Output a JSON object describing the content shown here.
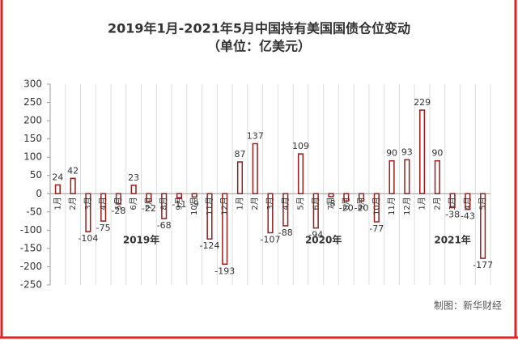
{
  "chart_data": {
    "type": "bar",
    "title": "2019年1月-2021年5月中国持有美国国债仓位变动",
    "subtitle": "（单位：亿美元）",
    "source": "制图：新华财经",
    "years": [
      "2019年",
      "2020年",
      "2021年"
    ],
    "categories": [
      "1月",
      "2月",
      "3月",
      "4月",
      "5月",
      "6月",
      "7月",
      "8月",
      "9月",
      "10月",
      "11月",
      "12月",
      "1月",
      "2月",
      "3月",
      "4月",
      "5月",
      "6月",
      "7月",
      "8月",
      "9月",
      "10月",
      "11月",
      "12月",
      "1月",
      "2月",
      "3月",
      "4月",
      "5月"
    ],
    "values": [
      24,
      42,
      -104,
      -75,
      -28,
      23,
      -22,
      -68,
      -11,
      -9,
      -124,
      -193,
      87,
      137,
      -107,
      -88,
      109,
      -94,
      -8,
      -20,
      -20,
      -77,
      90,
      93,
      229,
      90,
      -38,
      -43,
      -177
    ],
    "color": "#9b1c1c",
    "ylim": [
      -250,
      300
    ],
    "yticks": [
      -250,
      -200,
      -150,
      -100,
      -50,
      0,
      50,
      100,
      150,
      200,
      250,
      300
    ],
    "grid": true
  }
}
